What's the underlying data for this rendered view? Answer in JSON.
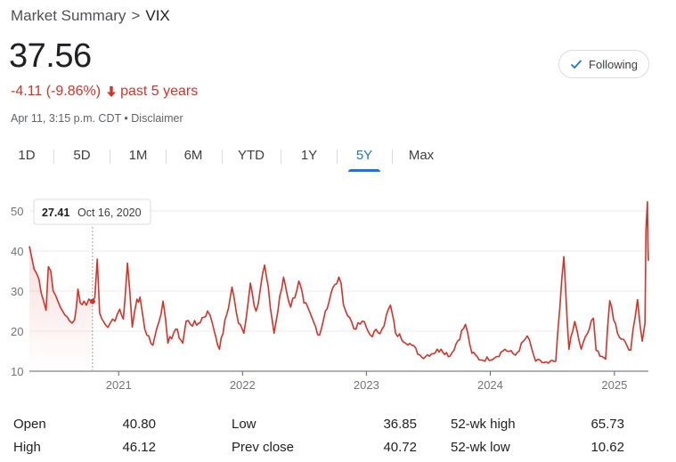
{
  "breadcrumb": {
    "parent": "Market Summary",
    "separator": ">",
    "current": "VIX"
  },
  "quote": {
    "price": "37.56",
    "change": "-4.11 (-9.86%)",
    "period": "past 5 years",
    "timestamp": "Apr 11, 3:15 p.m. CDT",
    "disclaimer_sep": "•",
    "disclaimer": "Disclaimer",
    "change_color": "#d93025"
  },
  "follow_button": {
    "label": "Following",
    "icon": "check-icon"
  },
  "tabs": [
    {
      "label": "1D",
      "active": false
    },
    {
      "label": "5D",
      "active": false
    },
    {
      "label": "1M",
      "active": false
    },
    {
      "label": "6M",
      "active": false
    },
    {
      "label": "YTD",
      "active": false
    },
    {
      "label": "1Y",
      "active": false
    },
    {
      "label": "5Y",
      "active": true
    },
    {
      "label": "Max",
      "active": false
    }
  ],
  "tooltip": {
    "value": "27.41",
    "date": "Oct 16, 2020"
  },
  "chart_data": {
    "type": "line",
    "title": "",
    "xlabel": "",
    "ylabel": "",
    "ylim": [
      10,
      50
    ],
    "yticks": [
      10,
      20,
      30,
      40,
      50
    ],
    "xlim": [
      "2020-04-13",
      "2025-04-11"
    ],
    "xticks": [
      "2021",
      "2022",
      "2023",
      "2024",
      "2025"
    ],
    "grid": true,
    "line_color": "#d93025",
    "cursor": {
      "x": "2020-10-16",
      "y": 27.41
    },
    "series": [
      {
        "values": [
          [
            "2020-04-13",
            41.2
          ],
          [
            "2020-04-27",
            35.5
          ],
          [
            "2020-05-11",
            33.0
          ],
          [
            "2020-05-18",
            29.5
          ],
          [
            "2020-05-25",
            27.5
          ],
          [
            "2020-06-01",
            25.2
          ],
          [
            "2020-06-08",
            36.1
          ],
          [
            "2020-06-15",
            35.0
          ],
          [
            "2020-06-22",
            30.0
          ],
          [
            "2020-06-29",
            29.0
          ],
          [
            "2020-07-06",
            27.5
          ],
          [
            "2020-07-13",
            26.0
          ],
          [
            "2020-07-20",
            25.0
          ],
          [
            "2020-07-27",
            24.0
          ],
          [
            "2020-08-03",
            23.5
          ],
          [
            "2020-08-10",
            22.5
          ],
          [
            "2020-08-17",
            22.0
          ],
          [
            "2020-08-24",
            22.8
          ],
          [
            "2020-09-03",
            30.5
          ],
          [
            "2020-09-10",
            27.0
          ],
          [
            "2020-09-21",
            27.5
          ],
          [
            "2020-09-28",
            26.5
          ],
          [
            "2020-10-05",
            28.0
          ],
          [
            "2020-10-16",
            27.41
          ],
          [
            "2020-10-23",
            28.5
          ],
          [
            "2020-10-30",
            38.0
          ],
          [
            "2020-11-06",
            24.5
          ],
          [
            "2020-11-13",
            23.0
          ],
          [
            "2020-11-24",
            21.5
          ],
          [
            "2020-12-07",
            22.0
          ],
          [
            "2020-12-21",
            22.5
          ],
          [
            "2021-01-04",
            25.5
          ],
          [
            "2021-01-15",
            23.0
          ],
          [
            "2021-01-27",
            37.0
          ],
          [
            "2021-02-10",
            21.0
          ],
          [
            "2021-02-24",
            28.0
          ],
          [
            "2021-03-05",
            28.5
          ],
          [
            "2021-03-19",
            20.5
          ],
          [
            "2021-04-12",
            16.5
          ],
          [
            "2021-05-12",
            27.5
          ],
          [
            "2021-05-26",
            17.0
          ],
          [
            "2021-06-18",
            20.5
          ],
          [
            "2021-07-09",
            17.0
          ],
          [
            "2021-07-19",
            22.5
          ],
          [
            "2021-08-19",
            21.5
          ],
          [
            "2021-09-20",
            25.0
          ],
          [
            "2021-10-04",
            22.0
          ],
          [
            "2021-10-25",
            15.5
          ],
          [
            "2021-11-26",
            28.5
          ],
          [
            "2021-12-01",
            31.0
          ],
          [
            "2021-12-20",
            22.0
          ],
          [
            "2022-01-05",
            19.5
          ],
          [
            "2022-01-24",
            32.0
          ],
          [
            "2022-02-10",
            25.0
          ],
          [
            "2022-03-07",
            36.5
          ],
          [
            "2022-04-04",
            19.5
          ],
          [
            "2022-05-02",
            33.5
          ],
          [
            "2022-05-23",
            26.0
          ],
          [
            "2022-06-16",
            32.5
          ],
          [
            "2022-07-01",
            27.0
          ],
          [
            "2022-08-16",
            19.0
          ],
          [
            "2022-09-02",
            25.0
          ],
          [
            "2022-09-30",
            31.6
          ],
          [
            "2022-10-12",
            33.5
          ],
          [
            "2022-11-01",
            25.0
          ],
          [
            "2022-12-01",
            20.5
          ],
          [
            "2022-12-20",
            22.5
          ],
          [
            "2023-01-13",
            19.0
          ],
          [
            "2023-02-16",
            20.5
          ],
          [
            "2023-03-13",
            26.5
          ],
          [
            "2023-03-28",
            19.5
          ],
          [
            "2023-05-15",
            16.5
          ],
          [
            "2023-06-13",
            13.5
          ],
          [
            "2023-08-09",
            15.5
          ],
          [
            "2023-09-05",
            13.8
          ],
          [
            "2023-10-20",
            21.7
          ],
          [
            "2023-11-08",
            14.5
          ],
          [
            "2023-12-04",
            12.8
          ],
          [
            "2024-01-16",
            13.5
          ],
          [
            "2024-02-13",
            15.5
          ],
          [
            "2024-03-15",
            14.0
          ],
          [
            "2024-04-19",
            18.8
          ],
          [
            "2024-05-14",
            12.5
          ],
          [
            "2024-06-20",
            12.0
          ],
          [
            "2024-07-12",
            12.5
          ],
          [
            "2024-08-05",
            38.6
          ],
          [
            "2024-08-20",
            15.5
          ],
          [
            "2024-09-06",
            22.4
          ],
          [
            "2024-09-25",
            15.5
          ],
          [
            "2024-10-31",
            23.2
          ],
          [
            "2024-11-08",
            15.2
          ],
          [
            "2024-12-06",
            13.0
          ],
          [
            "2024-12-18",
            27.6
          ],
          [
            "2025-01-10",
            19.5
          ],
          [
            "2025-01-27",
            18.0
          ],
          [
            "2025-02-18",
            15.3
          ],
          [
            "2025-03-10",
            27.9
          ],
          [
            "2025-03-24",
            17.5
          ],
          [
            "2025-04-01",
            22.0
          ],
          [
            "2025-04-04",
            45.3
          ],
          [
            "2025-04-08",
            52.3
          ],
          [
            "2025-04-10",
            40.7
          ],
          [
            "2025-04-11",
            37.56
          ]
        ]
      }
    ]
  },
  "stats": {
    "col1": [
      {
        "label": "Open",
        "value": "40.80"
      },
      {
        "label": "High",
        "value": "46.12"
      }
    ],
    "col2": [
      {
        "label": "Low",
        "value": "36.85"
      },
      {
        "label": "Prev close",
        "value": "40.72"
      }
    ],
    "col3": [
      {
        "label": "52-wk high",
        "value": "65.73"
      },
      {
        "label": "52-wk low",
        "value": "10.62"
      }
    ]
  }
}
